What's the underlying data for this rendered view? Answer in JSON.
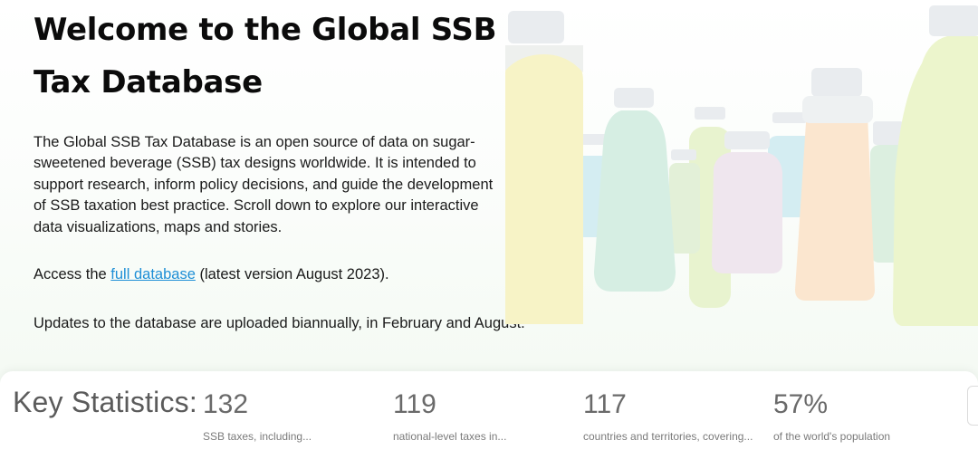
{
  "hero": {
    "title": "Welcome to the Global SSB Tax Database",
    "intro": "The Global SSB Tax Database is an open source of data on sugar-sweetened beverage (SSB) tax designs worldwide. It is intended to support research, inform policy decisions, and guide the development of SSB taxation best practice. Scroll down to explore our interactive data visualizations, maps and stories.",
    "access_prefix": "Access the ",
    "access_link": "full database",
    "access_suffix": " (latest version August 2023).",
    "updates": "Updates to the database are uploaded biannually, in February and August."
  },
  "stats": {
    "title": "Key Statistics:",
    "items": [
      {
        "value": "132",
        "label": "SSB taxes, including..."
      },
      {
        "value": "119",
        "label": "national-level taxes in..."
      },
      {
        "value": "117",
        "label": "countries and territories, covering..."
      },
      {
        "value": "57%",
        "label": "of the world's population"
      }
    ]
  },
  "illustration": {
    "name": "beverage-bottles-illustration",
    "colors": [
      "#f7f3c6",
      "#d6eee3",
      "#d4edf2",
      "#efe6ee",
      "#fbe6cf",
      "#e8f3cf",
      "#e9ecef"
    ]
  }
}
